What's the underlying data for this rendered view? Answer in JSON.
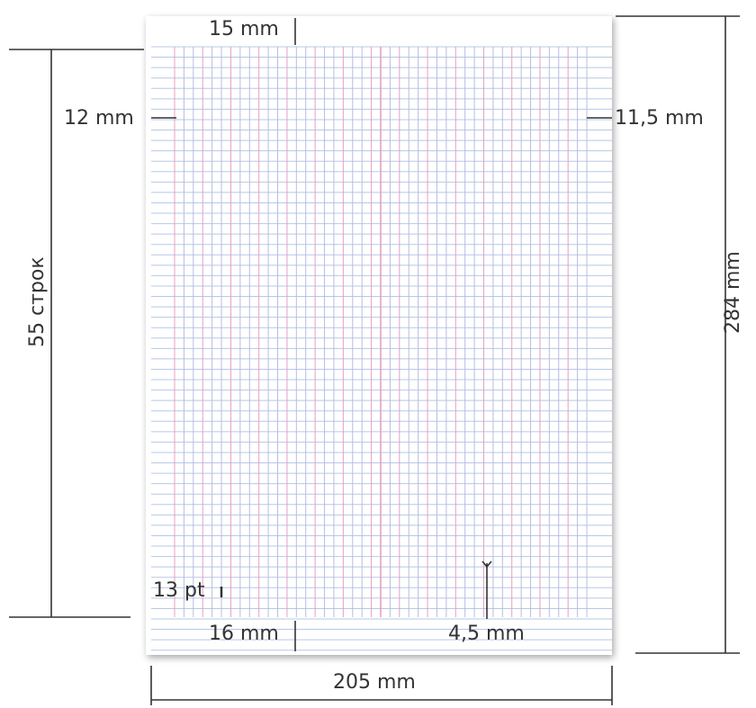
{
  "diagram": {
    "labels": {
      "top_margin": "15 mm",
      "bottom_margin": "16 mm",
      "left_margin": "12 mm",
      "right_margin": "11,5 mm",
      "line_spacing": "13 pt",
      "column_spacing": "4,5 mm",
      "width": "205 mm",
      "height": "284 mm",
      "rows": "55 строк"
    },
    "grid": {
      "row_count": 55,
      "vertical_line_count": 45,
      "accent_every": 3,
      "accent_center": true
    },
    "colors": {
      "horizontal_line": "#b8c8e4",
      "vertical_line": "#b8bde0",
      "accent_line": "#e4a0c6",
      "paper": "#ffffff",
      "dimension_line": "#333333"
    }
  }
}
